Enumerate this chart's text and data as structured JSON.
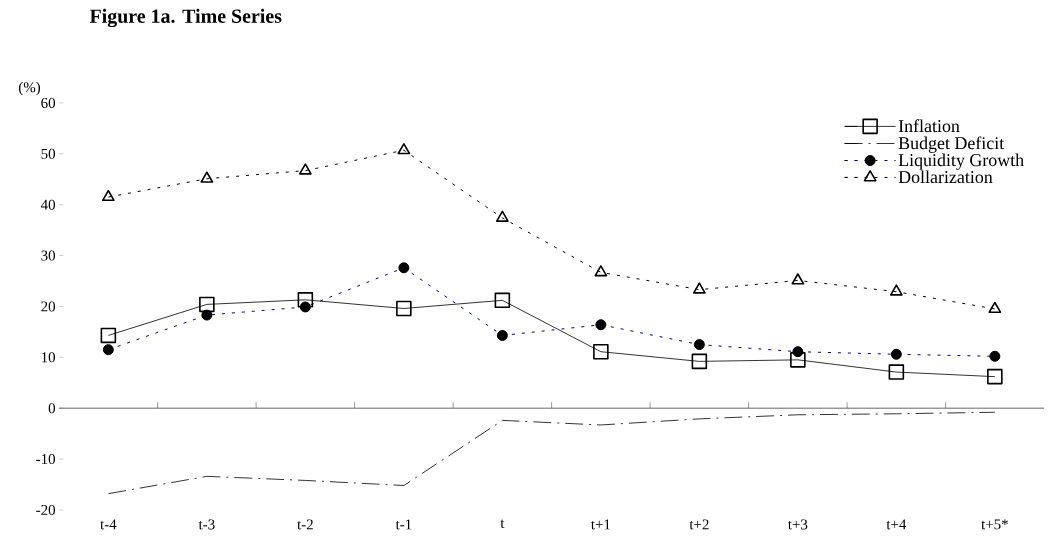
{
  "chart_data": {
    "type": "line",
    "title": "Figure 1a. Time Series",
    "ylabel": "(%)",
    "categories": [
      "t-4",
      "t-3",
      "t-2",
      "t-1",
      "t",
      "t+1",
      "t+2",
      "t+3",
      "t+4",
      "t+5*"
    ],
    "series": [
      {
        "name": "Inflation",
        "color": "#000000",
        "marker": "square",
        "line_style": "solid",
        "values": [
          14.3,
          20.4,
          21.3,
          19.6,
          21.2,
          11.1,
          9.2,
          9.5,
          7.1,
          6.2
        ]
      },
      {
        "name": "Budget Deficit",
        "color": "#000000",
        "marker": "none",
        "line_style": "dashed",
        "values": [
          -16.8,
          -13.4,
          -14.2,
          -15.2,
          -2.4,
          -3.3,
          -2.1,
          -1.3,
          -1.1,
          -0.8
        ]
      },
      {
        "name": "Liquidity Growth",
        "color": "#000080",
        "marker": "circle",
        "line_style": "dotted",
        "values": [
          11.5,
          18.3,
          19.9,
          27.6,
          14.3,
          16.4,
          12.5,
          11.1,
          10.6,
          10.2
        ]
      },
      {
        "name": "Dollarization",
        "color": "#000000",
        "marker": "triangle",
        "line_style": "dotted",
        "values": [
          41.5,
          45.1,
          46.7,
          50.7,
          37.4,
          26.7,
          23.3,
          25.1,
          22.9,
          19.5
        ]
      }
    ],
    "ylim": [
      -20,
      60
    ],
    "yticks": [
      -20,
      -10,
      0,
      10,
      20,
      30,
      40,
      50,
      60
    ],
    "ref_lines": [
      {
        "axis": "y",
        "value": 0
      }
    ],
    "legend": "top right"
  }
}
